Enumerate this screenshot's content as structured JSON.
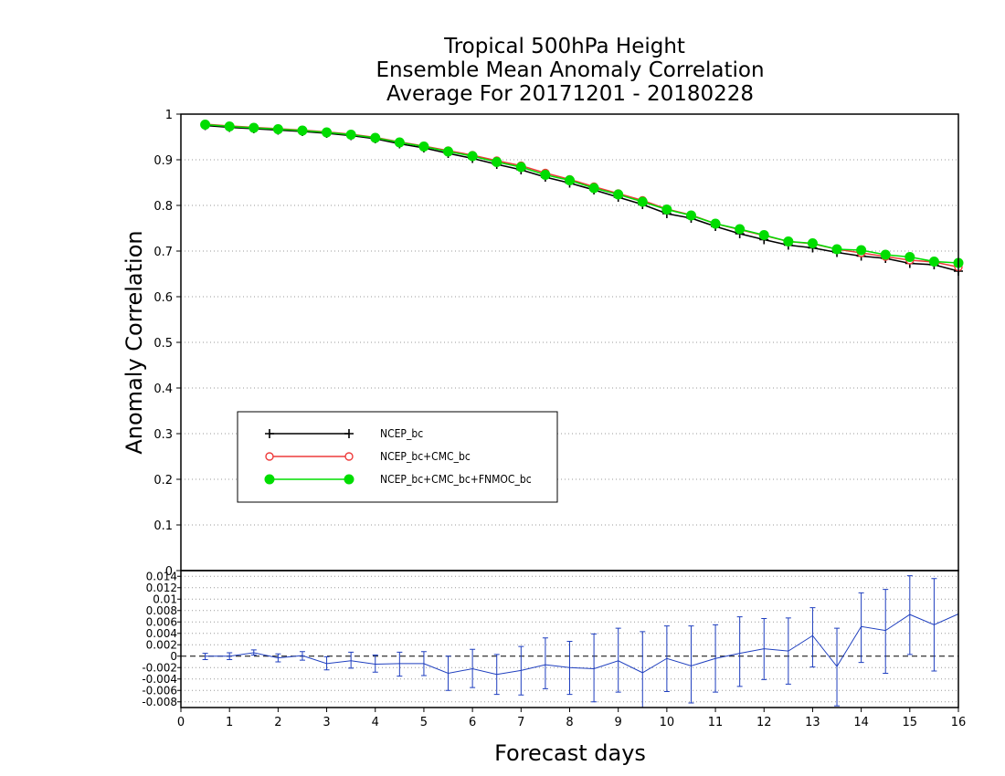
{
  "chart_data": [
    {
      "type": "line",
      "title": [
        "Tropical 500hPa Height",
        "Ensemble Mean Anomaly Correlation",
        "Average For 20171201 - 20180228"
      ],
      "xlabel": "Forecast days",
      "ylabel": "Anomaly Correlation",
      "xlim": [
        0,
        16
      ],
      "ylim": [
        0,
        1
      ],
      "x_ticks": [
        "0",
        "1",
        "2",
        "3",
        "4",
        "5",
        "6",
        "7",
        "8",
        "9",
        "10",
        "11",
        "12",
        "13",
        "14",
        "15",
        "16"
      ],
      "y_ticks": [
        "0",
        "0.1",
        "0.2",
        "0.3",
        "0.4",
        "0.5",
        "0.6",
        "0.7",
        "0.8",
        "0.9",
        "1"
      ],
      "grid": true,
      "legend_position": "left-lower",
      "x": [
        0.5,
        1,
        1.5,
        2,
        2.5,
        3,
        3.5,
        4,
        4.5,
        5,
        5.5,
        6,
        6.5,
        7,
        7.5,
        8,
        8.5,
        9,
        9.5,
        10,
        10.5,
        11,
        11.5,
        12,
        12.5,
        13,
        13.5,
        14,
        14.5,
        15,
        15.5,
        16
      ],
      "series": [
        {
          "name": "NCEP_bc",
          "color": "#000000",
          "marker": "plus",
          "values": [
            0.975,
            0.971,
            0.968,
            0.965,
            0.962,
            0.958,
            0.953,
            0.946,
            0.935,
            0.926,
            0.914,
            0.903,
            0.89,
            0.878,
            0.862,
            0.849,
            0.834,
            0.818,
            0.802,
            0.782,
            0.772,
            0.754,
            0.738,
            0.725,
            0.713,
            0.707,
            0.697,
            0.689,
            0.684,
            0.673,
            0.67,
            0.656
          ]
        },
        {
          "name": "NCEP_bc+CMC_bc",
          "color": "#ee3b3b",
          "marker": "open-circle",
          "values": [
            0.978,
            0.974,
            0.971,
            0.968,
            0.965,
            0.961,
            0.956,
            0.949,
            0.939,
            0.93,
            0.92,
            0.91,
            0.898,
            0.887,
            0.871,
            0.857,
            0.841,
            0.826,
            0.811,
            0.792,
            0.779,
            0.76,
            0.747,
            0.734,
            0.721,
            0.716,
            0.704,
            0.696,
            0.688,
            0.68,
            0.676,
            0.665
          ]
        },
        {
          "name": "NCEP_bc+CMC_bc+FNMOC_bc",
          "color": "#00dd00",
          "marker": "filled-circle",
          "values": [
            0.977,
            0.973,
            0.97,
            0.967,
            0.964,
            0.96,
            0.955,
            0.948,
            0.938,
            0.929,
            0.918,
            0.908,
            0.895,
            0.884,
            0.867,
            0.855,
            0.838,
            0.824,
            0.808,
            0.791,
            0.778,
            0.76,
            0.748,
            0.735,
            0.721,
            0.717,
            0.704,
            0.702,
            0.692,
            0.687,
            0.677,
            0.674
          ]
        }
      ]
    },
    {
      "type": "line",
      "xlabel": "Forecast days",
      "ylim": [
        -0.009,
        0.015
      ],
      "y_ticks": [
        "-0.008",
        "-0.006",
        "-0.004",
        "-0.002",
        "0",
        "0.002",
        "0.004",
        "0.006",
        "0.008",
        "0.01",
        "0.012",
        "0.014"
      ],
      "grid": true,
      "zero_line": "dashed",
      "x": [
        0.5,
        1,
        1.5,
        2,
        2.5,
        3,
        3.5,
        4,
        4.5,
        5,
        5.5,
        6,
        6.5,
        7,
        7.5,
        8,
        8.5,
        9,
        9.5,
        10,
        10.5,
        11,
        11.5,
        12,
        12.5,
        13,
        13.5,
        14,
        14.5,
        15,
        15.5,
        16
      ],
      "series": [
        {
          "color": "#1f3fbf",
          "values": [
            0,
            0,
            0.0006,
            -0.0003,
            0.0001,
            -0.0013,
            -0.0008,
            -0.0014,
            -0.0013,
            -0.0013,
            -0.003,
            -0.0022,
            -0.0032,
            -0.0025,
            -0.0015,
            -0.002,
            -0.0022,
            -0.0008,
            -0.0029,
            -0.0004,
            -0.0017,
            -0.0004,
            0.0005,
            0.0013,
            0.0009,
            0.0036,
            -0.0018,
            0.0052,
            0.0045,
            0.0073,
            0.0055,
            0.0074
          ],
          "error_low": [
            -0.0006,
            -0.0006,
            0.0002,
            -0.001,
            -0.0007,
            -0.0024,
            -0.0021,
            -0.0028,
            -0.0035,
            -0.0034,
            -0.006,
            -0.0055,
            -0.0067,
            -0.0068,
            -0.0057,
            -0.0067,
            -0.008,
            -0.0063,
            -0.0092,
            -0.0062,
            -0.0082,
            -0.0063,
            -0.0053,
            -0.0041,
            -0.0049,
            -0.0019,
            -0.0087,
            -0.0011,
            -0.003,
            0.0003,
            -0.0026,
            0.0074
          ],
          "error_high": [
            0.0005,
            0.0006,
            0.0011,
            0.0004,
            0.0008,
            -0.0001,
            0.0007,
            0.0002,
            0.0007,
            0.0008,
            0,
            0.0012,
            0.0003,
            0.0017,
            0.0032,
            0.0026,
            0.0039,
            0.0049,
            0.0043,
            0.0053,
            0.0053,
            0.0055,
            0.0069,
            0.0066,
            0.0067,
            0.0085,
            0.0049,
            0.0111,
            0.0117,
            0.0141,
            0.0136,
            0.0074
          ]
        }
      ]
    }
  ]
}
